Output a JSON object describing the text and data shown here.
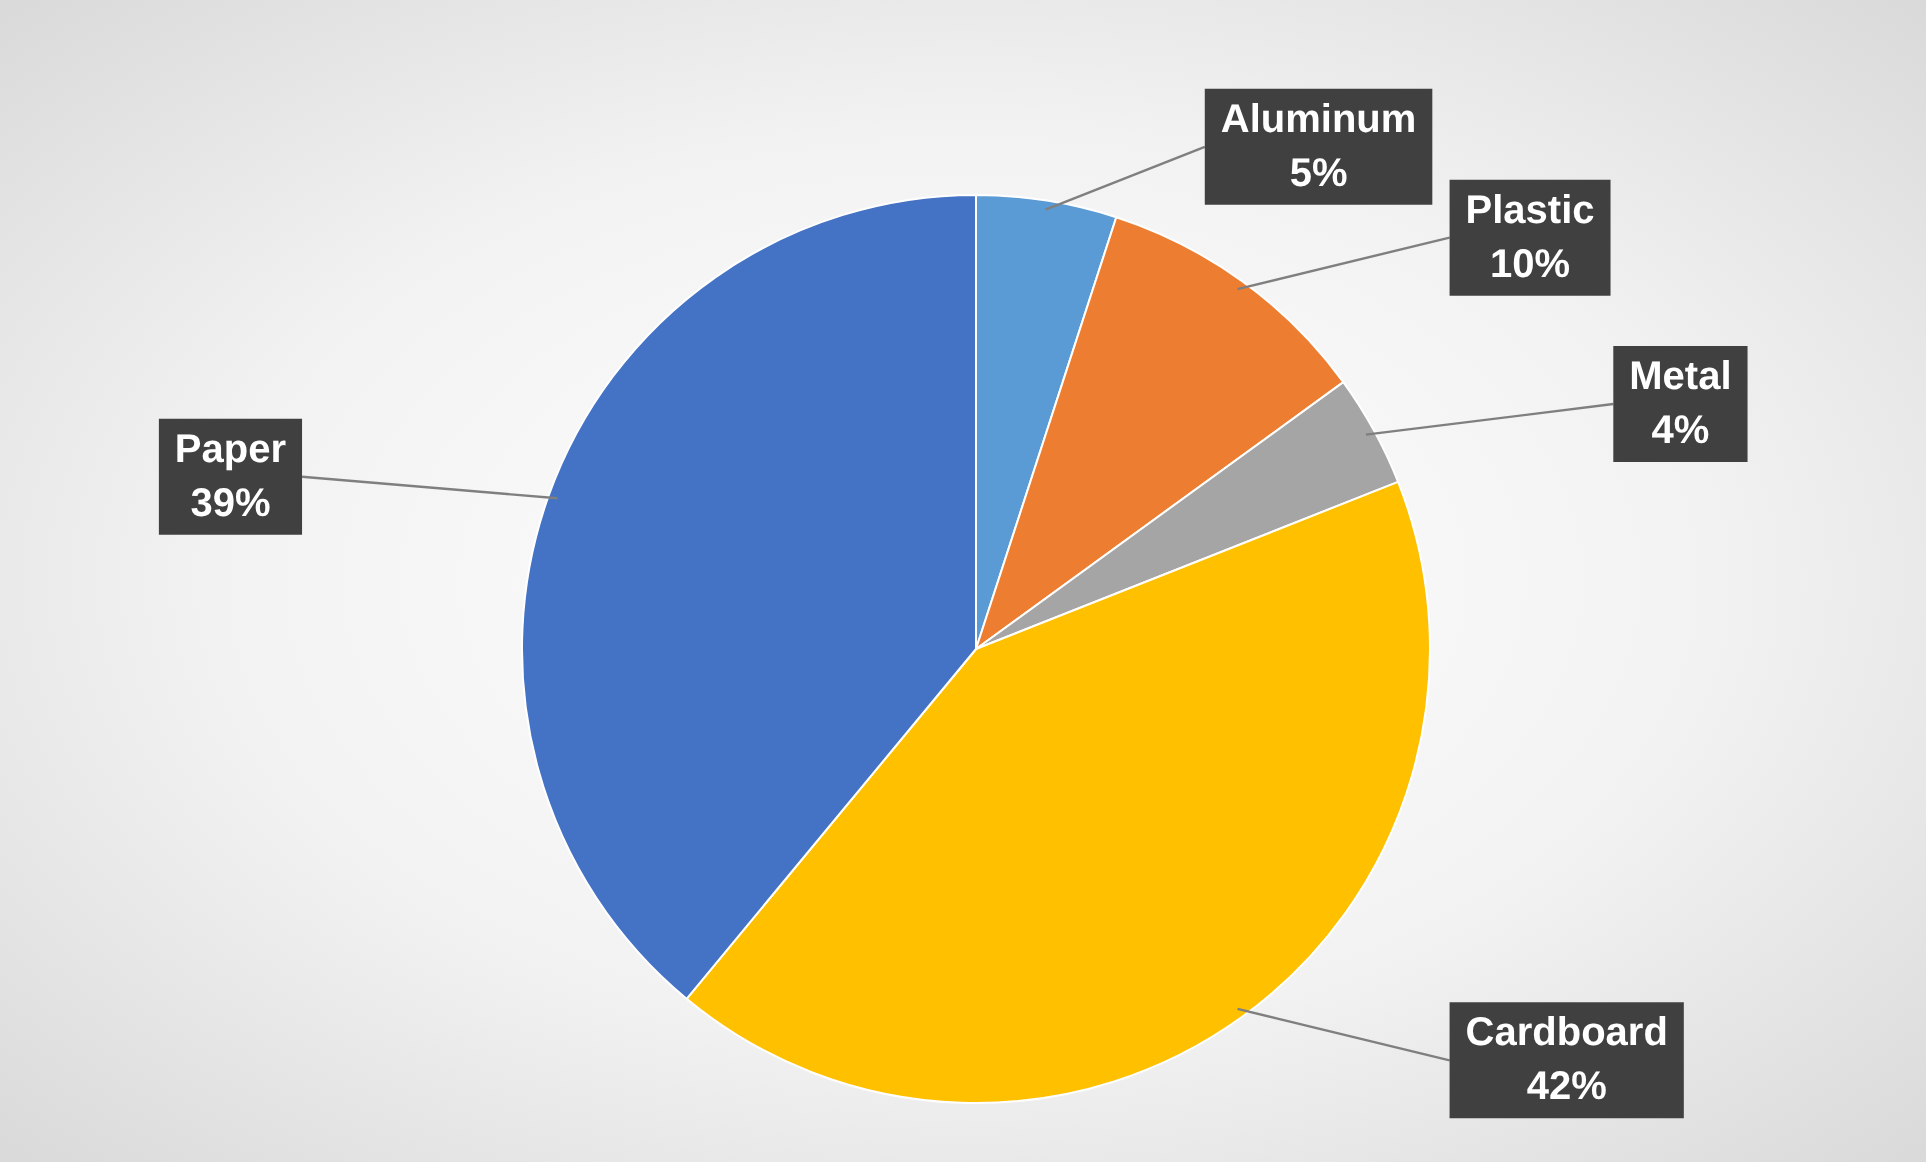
{
  "chart_data": {
    "type": "pie",
    "categories": [
      "Aluminum",
      "Plastic",
      "Metal",
      "Cardboard",
      "Paper"
    ],
    "values": [
      5,
      10,
      4,
      42,
      39
    ],
    "value_labels": [
      "5%",
      "10%",
      "4%",
      "42%",
      "39%"
    ],
    "colors": [
      "#5b9bd5",
      "#ed7d31",
      "#a5a5a5",
      "#ffc000",
      "#4472c4"
    ],
    "legend": false
  }
}
